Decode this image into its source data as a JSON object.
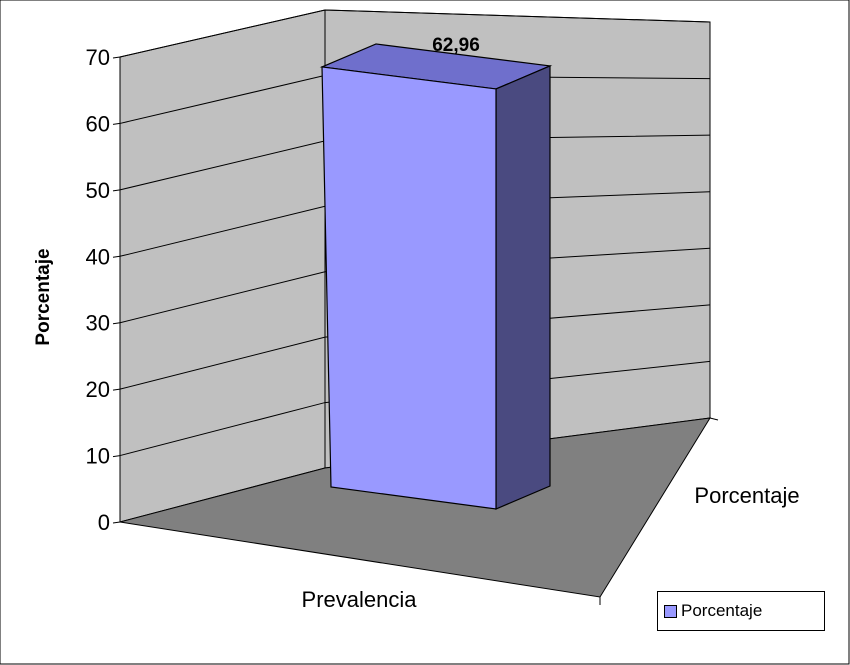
{
  "chart_data": {
    "type": "bar",
    "categories": [
      "Prevalencia"
    ],
    "series": [
      {
        "name": "Porcentaje",
        "values": [
          62.96
        ]
      }
    ],
    "data_labels": [
      "62,96"
    ],
    "ylabel": "Porcentaje",
    "xlabel": "Prevalencia",
    "depth_label": "Porcentaje",
    "ylim": [
      0,
      70
    ],
    "yticks": [
      "0",
      "10",
      "20",
      "30",
      "40",
      "50",
      "60",
      "70"
    ],
    "grid": true,
    "legend_position": "bottom-right",
    "three_d": true
  },
  "colors": {
    "bar_front": "#9999ff",
    "bar_top": "#6f6fcc",
    "bar_side": "#4a4a80",
    "back_wall": "#c0c0c0",
    "floor": "#808080"
  }
}
